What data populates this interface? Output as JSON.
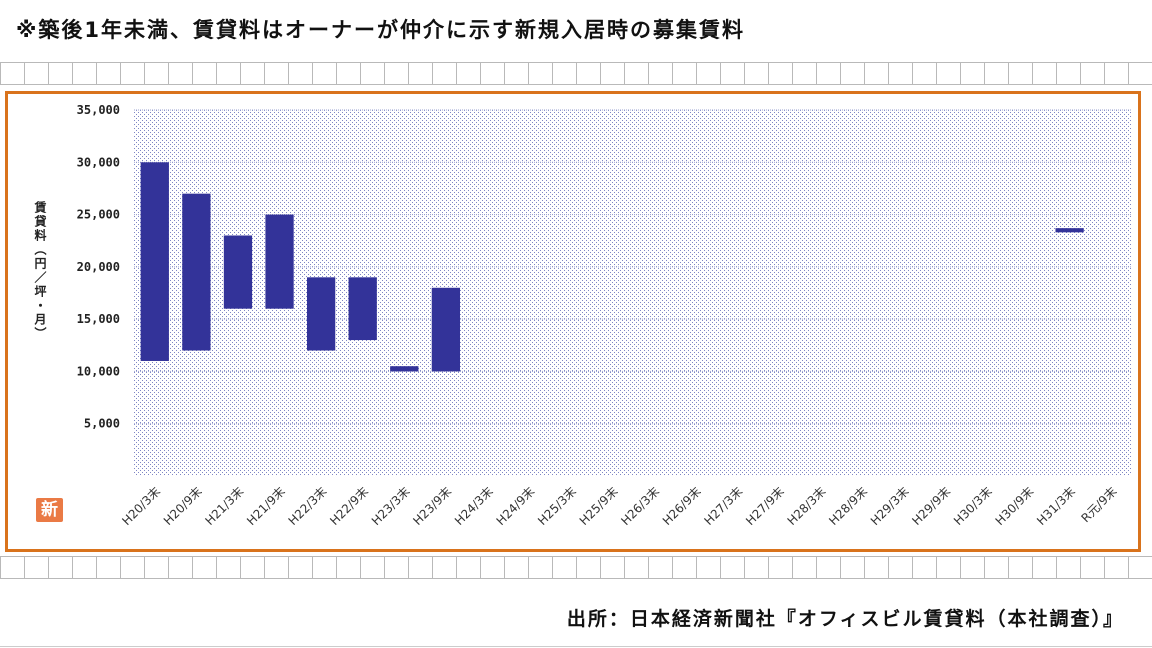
{
  "header": {
    "note": "※築後1年未満、賃貸料はオーナーが仲介に示す新規入居時の募集賃料"
  },
  "footer": {
    "source": "出所：日本経済新聞社『オフィスビル賃貸料（本社調査）』"
  },
  "badge": {
    "text": "新"
  },
  "colors": {
    "frame": "#d9731c",
    "bar": "#333399",
    "plot_dots": "#7f86c4",
    "badge": "#ea7a45"
  },
  "chart_data": {
    "type": "bar",
    "subtype": "floating-range",
    "ylabel": "賃貸料（円／坪・月）",
    "ylim": [
      0,
      35000
    ],
    "yticks": [
      "5,000",
      "10,000",
      "15,000",
      "20,000",
      "25,000",
      "30,000",
      "35,000"
    ],
    "ytick_values": [
      5000,
      10000,
      15000,
      20000,
      25000,
      30000,
      35000
    ],
    "grid": true,
    "categories": [
      "H20/3末",
      "H20/9末",
      "H21/3末",
      "H21/9末",
      "H22/3末",
      "H22/9末",
      "H23/3末",
      "H23/9末",
      "H24/3末",
      "H24/9末",
      "H25/3末",
      "H25/9末",
      "H26/3末",
      "H26/9末",
      "H27/3末",
      "H27/9末",
      "H28/3末",
      "H28/9末",
      "H29/3末",
      "H29/9末",
      "H30/3末",
      "H30/9末",
      "H31/3末",
      "R元/9末"
    ],
    "series": [
      {
        "low": [
          11000,
          12000,
          16000,
          16000,
          12000,
          13000,
          10000,
          10000,
          null,
          null,
          null,
          null,
          null,
          null,
          null,
          null,
          null,
          null,
          null,
          null,
          null,
          null,
          23300,
          null
        ],
        "high": [
          30000,
          27000,
          23000,
          25000,
          19000,
          19000,
          10500,
          18000,
          null,
          null,
          null,
          null,
          null,
          null,
          null,
          null,
          null,
          null,
          null,
          null,
          null,
          null,
          23700,
          null
        ]
      }
    ]
  }
}
